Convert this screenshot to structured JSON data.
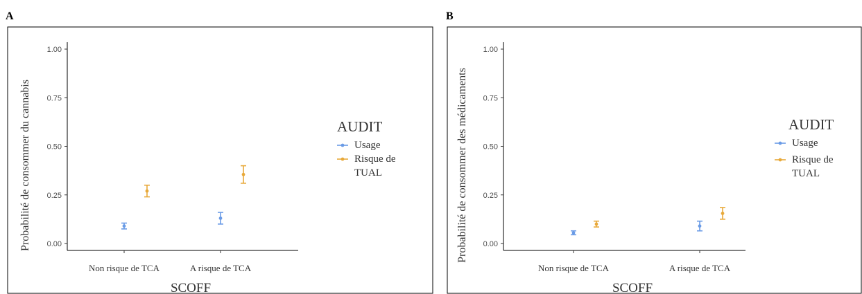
{
  "chart_data": [
    {
      "panel": "A",
      "type": "errorbar",
      "xlabel": "SCOFF",
      "ylabel": "Probabilité de consommer du cannabis",
      "categories": [
        "Non risque de TCA",
        "A risque de TCA"
      ],
      "ylim": [
        0,
        1
      ],
      "yticks": [
        "0.00",
        "0.25",
        "0.50",
        "0.75",
        "1.00"
      ],
      "legend_title": "AUDIT",
      "legend_position": "right",
      "series": [
        {
          "name": "Usage",
          "color": "#6a9be6",
          "values": [
            0.09,
            0.13
          ],
          "lower": [
            0.075,
            0.1
          ],
          "upper": [
            0.105,
            0.16
          ]
        },
        {
          "name": "Risque de TUAL",
          "name_lines": [
            "Risque de",
            "TUAL"
          ],
          "color": "#e8a93a",
          "values": [
            0.27,
            0.355
          ],
          "lower": [
            0.24,
            0.31
          ],
          "upper": [
            0.3,
            0.4
          ]
        }
      ]
    },
    {
      "panel": "B",
      "type": "errorbar",
      "xlabel": "SCOFF",
      "ylabel": "Probabilité de consommer des médicaments",
      "categories": [
        "Non risque de TCA",
        "A risque de TCA"
      ],
      "ylim": [
        0,
        1
      ],
      "yticks": [
        "0.00",
        "0.25",
        "0.50",
        "0.75",
        "1.00"
      ],
      "legend_title": "AUDIT",
      "legend_position": "right",
      "series": [
        {
          "name": "Usage",
          "color": "#6a9be6",
          "values": [
            0.055,
            0.09
          ],
          "lower": [
            0.045,
            0.065
          ],
          "upper": [
            0.065,
            0.115
          ]
        },
        {
          "name": "Risque de TUAL",
          "name_lines": [
            "Risque de",
            "TUAL"
          ],
          "color": "#e8a93a",
          "values": [
            0.1,
            0.155
          ],
          "lower": [
            0.085,
            0.125
          ],
          "upper": [
            0.115,
            0.185
          ]
        }
      ]
    }
  ]
}
